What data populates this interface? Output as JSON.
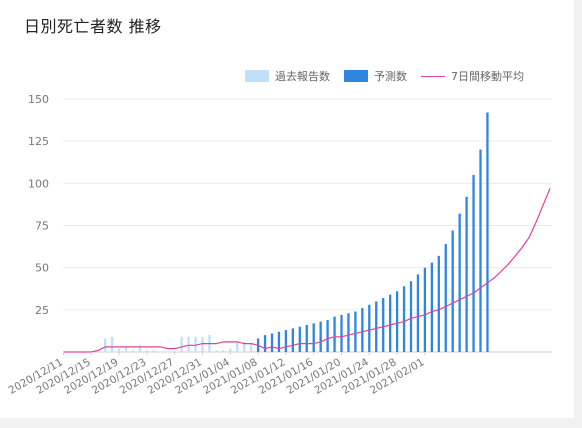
{
  "page": {
    "title": "日別死亡者数 推移"
  },
  "colors": {
    "past": "#bfe0f7",
    "forecast": "#2e86de",
    "avg": "#e040a0",
    "grid": "#ececec"
  },
  "chart_data": {
    "type": "bar",
    "title": "日別死亡者数 推移",
    "legend_position": "top-right",
    "grid": true,
    "ylim": [
      0,
      150
    ],
    "yticks": [
      25,
      50,
      75,
      100,
      125,
      150
    ],
    "x_tick_labels": [
      "2020/12/11",
      "2020/12/15",
      "2020/12/19",
      "2020/12/23",
      "2020/12/27",
      "2020/12/31",
      "2021/01/04",
      "2021/01/08",
      "2021/01/12",
      "2021/01/16",
      "2021/01/20",
      "2021/01/24",
      "2021/01/28",
      "2021/02/01"
    ],
    "x_tick_every_days": 4,
    "series": [
      {
        "name": "過去報告数",
        "kind": "bar",
        "start_date": "2020/12/11",
        "values": [
          0,
          0,
          0,
          0,
          0,
          1,
          8,
          9,
          2,
          3,
          1,
          4,
          1,
          1,
          0,
          0,
          0,
          9,
          9,
          9,
          9,
          10,
          1,
          1,
          2,
          6,
          6,
          5,
          2,
          3,
          6,
          1,
          0,
          13,
          5,
          2,
          3,
          10,
          6
        ]
      },
      {
        "name": "予測数",
        "kind": "bar",
        "start_date": "2021/01/08",
        "values": [
          8,
          10,
          11,
          12,
          13,
          14,
          15,
          16,
          17,
          18,
          19,
          21,
          22,
          23,
          24,
          26,
          28,
          30,
          32,
          34,
          36,
          39,
          42,
          46,
          50,
          53,
          57,
          64,
          72,
          82,
          92,
          105,
          120,
          142
        ]
      },
      {
        "name": "7日間移動平均",
        "kind": "line",
        "start_date": "2020/12/11",
        "values": [
          0,
          0,
          0,
          0,
          0,
          1,
          3,
          3,
          3,
          3,
          3,
          3,
          3,
          3,
          3,
          2,
          2,
          3,
          4,
          4,
          5,
          5,
          5,
          6,
          6,
          6,
          5,
          5,
          4,
          2,
          3,
          2,
          3,
          4,
          5,
          5,
          5,
          6,
          8,
          9,
          9,
          10,
          11,
          12,
          13,
          14,
          15,
          16,
          17,
          18,
          20,
          21,
          22,
          24,
          25,
          27,
          29,
          31,
          33,
          35,
          38,
          41,
          44,
          48,
          52,
          57,
          62,
          68,
          77,
          87,
          97
        ]
      }
    ]
  }
}
